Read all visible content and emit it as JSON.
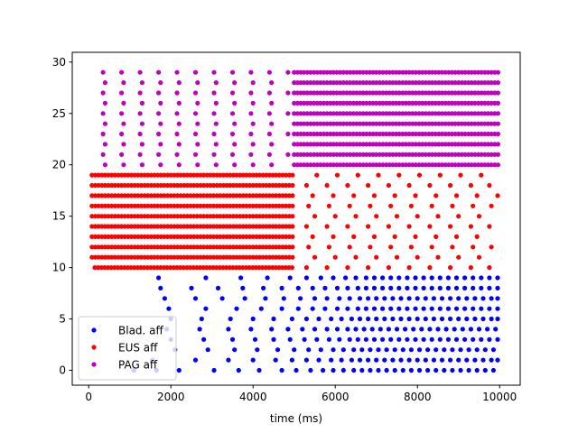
{
  "chart_data": {
    "type": "scatter",
    "title": "",
    "xlabel": "time (ms)",
    "ylabel": "",
    "xlim": [
      -400,
      10500
    ],
    "ylim": [
      -1.45,
      30.95
    ],
    "xticks": [
      0,
      2000,
      4000,
      6000,
      8000,
      10000
    ],
    "yticks": [
      0,
      5,
      10,
      15,
      20,
      25,
      30
    ],
    "grid": false,
    "legend_position": "lower-left",
    "series": [
      {
        "name": "Blad. aff",
        "color": "#0000ff",
        "marker": "point",
        "note_structure": "spike raster; neurons 0-9, firing rate increases over time",
        "neurons": [
          {
            "y": 0,
            "spikes": [
              1100,
              1650,
              2200,
              3050,
              3650,
              4150,
              4700,
              5050,
              5400,
              5700,
              5950,
              6200,
              6450,
              6650,
              6850,
              7050,
              7250,
              7450,
              7650,
              7850,
              8050,
              8250,
              8450,
              8650,
              8850,
              9050,
              9250,
              9450,
              9650,
              9850
            ]
          },
          {
            "y": 1,
            "spikes": [
              1550,
              2600,
              3400,
              4000,
              4550,
              4950,
              5300,
              5600,
              5900,
              6150,
              6400,
              6600,
              6800,
              7000,
              7200,
              7400,
              7600,
              7800,
              8000,
              8200,
              8400,
              8600,
              8800,
              9000,
              9200,
              9400,
              9600,
              9800,
              9950
            ]
          },
          {
            "y": 2,
            "spikes": [
              2100,
              2900,
              3550,
              4100,
              4600,
              5000,
              5350,
              5650,
              5950,
              6200,
              6450,
              6650,
              6850,
              7050,
              7250,
              7450,
              7650,
              7850,
              8050,
              8250,
              8450,
              8650,
              8850,
              9050,
              9250,
              9450,
              9650,
              9850
            ]
          },
          {
            "y": 3,
            "spikes": [
              2000,
              2800,
              3500,
              4050,
              4500,
              4900,
              5250,
              5550,
              5850,
              6100,
              6350,
              6550,
              6750,
              6950,
              7150,
              7350,
              7550,
              7750,
              7950,
              8150,
              8350,
              8550,
              8750,
              8950,
              9150,
              9350,
              9550,
              9750,
              9950
            ]
          },
          {
            "y": 4,
            "spikes": [
              1900,
              2700,
              3400,
              3950,
              4450,
              4850,
              5200,
              5500,
              5800,
              6050,
              6300,
              6500,
              6700,
              6900,
              7100,
              7300,
              7500,
              7700,
              7900,
              8100,
              8300,
              8500,
              8700,
              8900,
              9100,
              9300,
              9500,
              9700,
              9900
            ]
          },
          {
            "y": 5,
            "spikes": [
              2000,
              2750,
              3450,
              4000,
              4500,
              4950,
              5300,
              5600,
              5900,
              6150,
              6400,
              6600,
              6800,
              7000,
              7200,
              7400,
              7600,
              7800,
              8000,
              8200,
              8400,
              8600,
              8800,
              9000,
              9200,
              9400,
              9600,
              9800,
              9950
            ]
          },
          {
            "y": 6,
            "spikes": [
              1950,
              2850,
              3600,
              4200,
              4700,
              5100,
              5450,
              5750,
              6050,
              6300,
              6550,
              6750,
              6950,
              7150,
              7350,
              7550,
              7750,
              7950,
              8150,
              8350,
              8550,
              8750,
              8950,
              9150,
              9350,
              9550,
              9750,
              9950
            ]
          },
          {
            "y": 7,
            "spikes": [
              1850,
              2600,
              3250,
              3800,
              4300,
              4750,
              5150,
              5500,
              5800,
              6100,
              6350,
              6600,
              6800,
              7000,
              7200,
              7400,
              7600,
              7800,
              8000,
              8200,
              8400,
              8600,
              8800,
              9000,
              9200,
              9400,
              9600,
              9800,
              9950
            ]
          },
          {
            "y": 8,
            "spikes": [
              1750,
              2500,
              3150,
              3750,
              4250,
              4700,
              5100,
              5450,
              5750,
              6050,
              6300,
              6550,
              6750,
              6950,
              7150,
              7350,
              7550,
              7750,
              7950,
              8150,
              8350,
              8550,
              8750,
              8950,
              9150,
              9350,
              9550,
              9750,
              9950
            ]
          },
          {
            "y": 9,
            "spikes": [
              1700,
              2850,
              3700,
              4350,
              4900,
              5300,
              5650,
              5950,
              6250,
              6500,
              6750,
              6950,
              7150,
              7350,
              7550,
              7750,
              7950,
              8150,
              8350,
              8550,
              8750,
              8950,
              9150,
              9350,
              9550,
              9750,
              9950
            ]
          }
        ]
      },
      {
        "name": "EUS aff",
        "color": "#ff0000",
        "marker": "point",
        "neurons": [
          {
            "y": 10,
            "start": 150,
            "end": 4950,
            "interval": 80,
            "late_spikes": [
              5300,
              5800,
              6300,
              6800,
              7300,
              7800,
              8300,
              8800,
              9300,
              9750
            ]
          },
          {
            "y": 11,
            "start": 80,
            "end": 5000,
            "interval": 80,
            "late_spikes": [
              5500,
              6000,
              6500,
              7000,
              7500,
              8000,
              8500,
              9000,
              9500
            ]
          },
          {
            "y": 12,
            "start": 80,
            "end": 5000,
            "interval": 80,
            "late_spikes": [
              5350,
              5850,
              6350,
              6850,
              7350,
              7850,
              8350,
              8850,
              9350,
              9800
            ]
          },
          {
            "y": 13,
            "start": 80,
            "end": 5000,
            "interval": 80,
            "late_spikes": [
              5450,
              5950,
              6450,
              6950,
              7450,
              7950,
              8450,
              8950,
              9450
            ]
          },
          {
            "y": 14,
            "start": 80,
            "end": 5000,
            "interval": 80,
            "late_spikes": [
              5300,
              5800,
              6300,
              6800,
              7300,
              7800,
              8300,
              8800,
              9300,
              9750
            ]
          },
          {
            "y": 15,
            "start": 80,
            "end": 5000,
            "interval": 80,
            "late_spikes": [
              5500,
              6000,
              6500,
              7000,
              7500,
              8000,
              8500,
              9000,
              9500
            ]
          },
          {
            "y": 16,
            "start": 80,
            "end": 5000,
            "interval": 80,
            "late_spikes": [
              5350,
              5850,
              6350,
              6850,
              7350,
              7850,
              8350,
              8850,
              9350,
              9800
            ]
          },
          {
            "y": 17,
            "start": 80,
            "end": 5000,
            "interval": 80,
            "late_spikes": [
              5450,
              5950,
              6450,
              6950,
              7450,
              7950,
              8450,
              8950,
              9450,
              9950
            ]
          },
          {
            "y": 18,
            "start": 80,
            "end": 5000,
            "interval": 80,
            "late_spikes": [
              5300,
              5800,
              6300,
              6800,
              7300,
              7800,
              8300,
              8800,
              9300,
              9750
            ]
          },
          {
            "y": 19,
            "start": 80,
            "end": 5000,
            "interval": 80,
            "late_spikes": [
              5550,
              6050,
              6550,
              7050,
              7550,
              8050,
              8550,
              9050,
              9550
            ]
          }
        ]
      },
      {
        "name": "PAG aff",
        "color": "#bf00bf",
        "marker": "point",
        "neurons": [
          {
            "y": 20,
            "start": 5000,
            "end": 10000,
            "interval": 80,
            "early_spikes": [
              400,
              850,
              1300,
              1750,
              2200,
              2650,
              3100,
              3550,
              4000,
              4450
            ]
          },
          {
            "y": 21,
            "start": 5000,
            "end": 10000,
            "interval": 80,
            "early_spikes": [
              350,
              800,
              1250,
              1700,
              2150,
              2600,
              3050,
              3500,
              3950,
              4400,
              4850
            ]
          },
          {
            "y": 22,
            "start": 5000,
            "end": 10000,
            "interval": 80,
            "early_spikes": [
              400,
              850,
              1300,
              1750,
              2200,
              2650,
              3100,
              3550,
              4000,
              4450
            ]
          },
          {
            "y": 23,
            "start": 5000,
            "end": 10000,
            "interval": 80,
            "early_spikes": [
              350,
              800,
              1250,
              1700,
              2150,
              2600,
              3050,
              3500,
              3950,
              4400,
              4850
            ]
          },
          {
            "y": 24,
            "start": 5000,
            "end": 10000,
            "interval": 80,
            "early_spikes": [
              400,
              850,
              1300,
              1750,
              2200,
              2650,
              3100,
              3550,
              4000,
              4450
            ]
          },
          {
            "y": 25,
            "start": 5000,
            "end": 10000,
            "interval": 80,
            "early_spikes": [
              350,
              800,
              1250,
              1700,
              2150,
              2600,
              3050,
              3500,
              3950,
              4400,
              4850
            ]
          },
          {
            "y": 26,
            "start": 5000,
            "end": 10000,
            "interval": 80,
            "early_spikes": [
              400,
              850,
              1300,
              1750,
              2200,
              2650,
              3100,
              3550,
              4000,
              4450
            ]
          },
          {
            "y": 27,
            "start": 5000,
            "end": 10000,
            "interval": 80,
            "early_spikes": [
              350,
              800,
              1250,
              1700,
              2150,
              2600,
              3050,
              3500,
              3950,
              4400,
              4850
            ]
          },
          {
            "y": 28,
            "start": 5000,
            "end": 10000,
            "interval": 80,
            "early_spikes": [
              400,
              850,
              1300,
              1750,
              2200,
              2650,
              3100,
              3550,
              4000,
              4450
            ]
          },
          {
            "y": 29,
            "start": 5000,
            "end": 10000,
            "interval": 80,
            "early_spikes": [
              350,
              800,
              1250,
              1700,
              2150,
              2600,
              3050,
              3500,
              3950,
              4400,
              4850
            ]
          }
        ]
      }
    ]
  }
}
